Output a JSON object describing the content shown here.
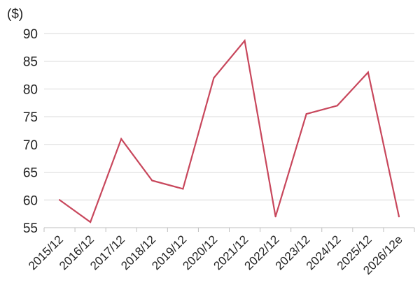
{
  "chart_data": {
    "type": "line",
    "title": "",
    "xlabel": "",
    "ylabel": "($)",
    "categories": [
      "2015/12",
      "2016/12",
      "2017/12",
      "2018/12",
      "2019/12",
      "2020/12",
      "2021/12",
      "2022/12",
      "2023/12",
      "2024/12",
      "2025/12",
      "2026/12e"
    ],
    "series": [
      {
        "values": [
          60,
          56,
          71,
          63.5,
          62,
          82,
          88.7,
          57,
          75.5,
          77,
          83,
          57
        ],
        "color": "#c8475c"
      }
    ],
    "ylim": [
      55,
      90
    ],
    "yticks": [
      "55",
      "60",
      "65",
      "70",
      "75",
      "80",
      "85",
      "90"
    ],
    "grid": true,
    "legend": "none"
  }
}
